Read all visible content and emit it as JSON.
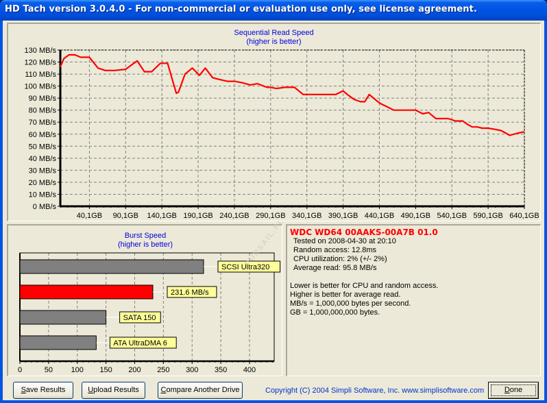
{
  "window": {
    "title": "HD Tach version 3.0.4.0  - For non-commercial or evaluation use only, see license agreement."
  },
  "colors": {
    "title_bar": "#0054e3",
    "background": "#ece9d8",
    "chart_title": "#0000e0",
    "read_line": "#ff0000",
    "burst_highlight": "#ff0000",
    "burst_reference": "#808080",
    "label_bg": "#ffff99",
    "drive_name": "#ff0000",
    "copyright": "#0033cc"
  },
  "sequential": {
    "title": "Sequential Read Speed",
    "subtitle": "(higher is better)"
  },
  "burst": {
    "title": "Burst Speed",
    "subtitle": "(higher is better)"
  },
  "info": {
    "drive": "WDC WD64 00AAKS-00A7B 01.0",
    "tested_on": "Tested on 2008-04-30 at 20:10",
    "random_access": "Random access: 12.8ms",
    "cpu_utilization": "CPU utilization: 2% (+/- 2%)",
    "average_read": "Average read: 95.8 MB/s",
    "notes": [
      "Lower is better for CPU and random access.",
      "Higher is better for average read.",
      "MB/s = 1,000,000 bytes per second.",
      "GB = 1,000,000,000 bytes."
    ]
  },
  "buttons": {
    "save": {
      "mnemonic": "S",
      "rest": "ave Results"
    },
    "upload": {
      "mnemonic": "U",
      "rest": "pload Results"
    },
    "compare": {
      "mnemonic": "C",
      "rest": "ompare Another Drive"
    },
    "done": {
      "mnemonic": "D",
      "rest": "one"
    }
  },
  "footer": {
    "copyright": "Copyright (C) 2004 Simpli Software, Inc. www.simplisoftware.com"
  },
  "chart_data": [
    {
      "type": "line",
      "title": "Sequential Read Speed",
      "subtitle": "(higher is better)",
      "xlabel": "",
      "ylabel": "",
      "x_tick_labels": [
        "40,1GB",
        "90,1GB",
        "140,1GB",
        "190,1GB",
        "240,1GB",
        "290,1GB",
        "340,1GB",
        "390,1GB",
        "440,1GB",
        "490,1GB",
        "540,1GB",
        "590,1GB",
        "640,1GB"
      ],
      "y_tick_labels": [
        "0 MB/s",
        "10 MB/s",
        "20 MB/s",
        "30 MB/s",
        "40 MB/s",
        "50 MB/s",
        "60 MB/s",
        "70 MB/s",
        "80 MB/s",
        "90 MB/s",
        "100 MB/s",
        "110 MB/s",
        "120 MB/s",
        "130 MB/s"
      ],
      "ylim": [
        0,
        130
      ],
      "xlim_gb": [
        0,
        640.1
      ],
      "grid": true,
      "series": [
        {
          "name": "Read speed (MB/s)",
          "x_gb": [
            0,
            5,
            12,
            20,
            28,
            40,
            52,
            62,
            75,
            90,
            106,
            116,
            126,
            138,
            148,
            160,
            163,
            172,
            182,
            192,
            200,
            210,
            216,
            230,
            240,
            250,
            262,
            272,
            285,
            290,
            298,
            310,
            323,
            335,
            345,
            355,
            368,
            380,
            390,
            396,
            405,
            414,
            420,
            426,
            438,
            443,
            450,
            460,
            470,
            480,
            490,
            500,
            508,
            512,
            518,
            525,
            535,
            545,
            555,
            562,
            568,
            575,
            582,
            590,
            600,
            608,
            614,
            620,
            632,
            640
          ],
          "values": [
            116,
            123,
            126,
            126,
            124,
            124,
            115,
            113,
            113,
            114,
            121,
            112,
            112,
            119,
            119,
            94,
            95,
            110,
            115,
            109,
            115,
            107,
            106,
            104,
            104,
            103,
            101,
            102,
            99,
            99,
            98,
            99,
            99,
            93,
            93,
            93,
            93,
            93,
            96,
            93,
            89,
            87,
            87,
            93,
            87,
            85,
            83,
            80,
            80,
            80,
            80,
            77,
            78,
            76,
            73,
            73,
            73,
            71,
            71,
            68,
            66,
            66,
            65,
            65,
            64,
            63,
            61,
            59,
            61,
            62
          ]
        }
      ]
    },
    {
      "type": "bar",
      "orientation": "horizontal",
      "title": "Burst Speed",
      "subtitle": "(higher is better)",
      "x_tick_labels": [
        "0",
        "50",
        "100",
        "150",
        "200",
        "250",
        "300",
        "350",
        "400"
      ],
      "xlim": [
        0,
        440
      ],
      "grid": true,
      "categories": [
        "SCSI Ultra320",
        "231.6 MB/s",
        "SATA 150",
        "ATA UltraDMA 6"
      ],
      "values": [
        320,
        231.6,
        150,
        133
      ],
      "highlight_index": 1
    }
  ]
}
